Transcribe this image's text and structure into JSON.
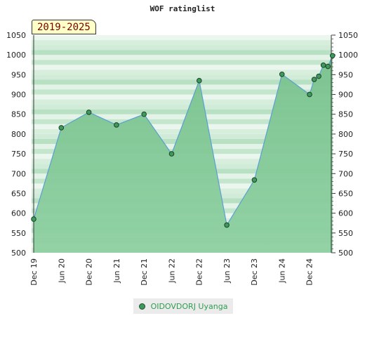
{
  "title": "WOF ratinglist",
  "period_badge": "2019-2025",
  "legend": {
    "label": "OIDOVDORJ Uyanga"
  },
  "colors": {
    "line": "#5aa0d0",
    "marker": "#3d9a5b",
    "area": "#6fbf86"
  },
  "chart_data": {
    "type": "area",
    "title": "WOF ratinglist",
    "xlabel": "",
    "ylabel": "",
    "ylim": [
      500,
      1050
    ],
    "yticks": [
      500,
      550,
      600,
      650,
      700,
      750,
      800,
      850,
      900,
      950,
      1000,
      1050
    ],
    "x_tick_labels": [
      "Dec 19",
      "Jun 20",
      "Dec 20",
      "Jun 21",
      "Dec 21",
      "Jun 22",
      "Dec 22",
      "Jun 23",
      "Dec 23",
      "Jun 24",
      "Dec 24"
    ],
    "legend_position": "bottom",
    "series": [
      {
        "name": "OIDOVDORJ Uyanga",
        "points": [
          {
            "x": "2019-12",
            "y": 585
          },
          {
            "x": "2020-06",
            "y": 816
          },
          {
            "x": "2020-12",
            "y": 855
          },
          {
            "x": "2021-06",
            "y": 823
          },
          {
            "x": "2021-12",
            "y": 850
          },
          {
            "x": "2022-06",
            "y": 750
          },
          {
            "x": "2022-12",
            "y": 935
          },
          {
            "x": "2023-06",
            "y": 570
          },
          {
            "x": "2023-12",
            "y": 684
          },
          {
            "x": "2024-06",
            "y": 951
          },
          {
            "x": "2024-12",
            "y": 900
          },
          {
            "x": "2025-01",
            "y": 938
          },
          {
            "x": "2025-02",
            "y": 946
          },
          {
            "x": "2025-03",
            "y": 974
          },
          {
            "x": "2025-04",
            "y": 971
          },
          {
            "x": "2025-05",
            "y": 998
          }
        ]
      }
    ]
  }
}
